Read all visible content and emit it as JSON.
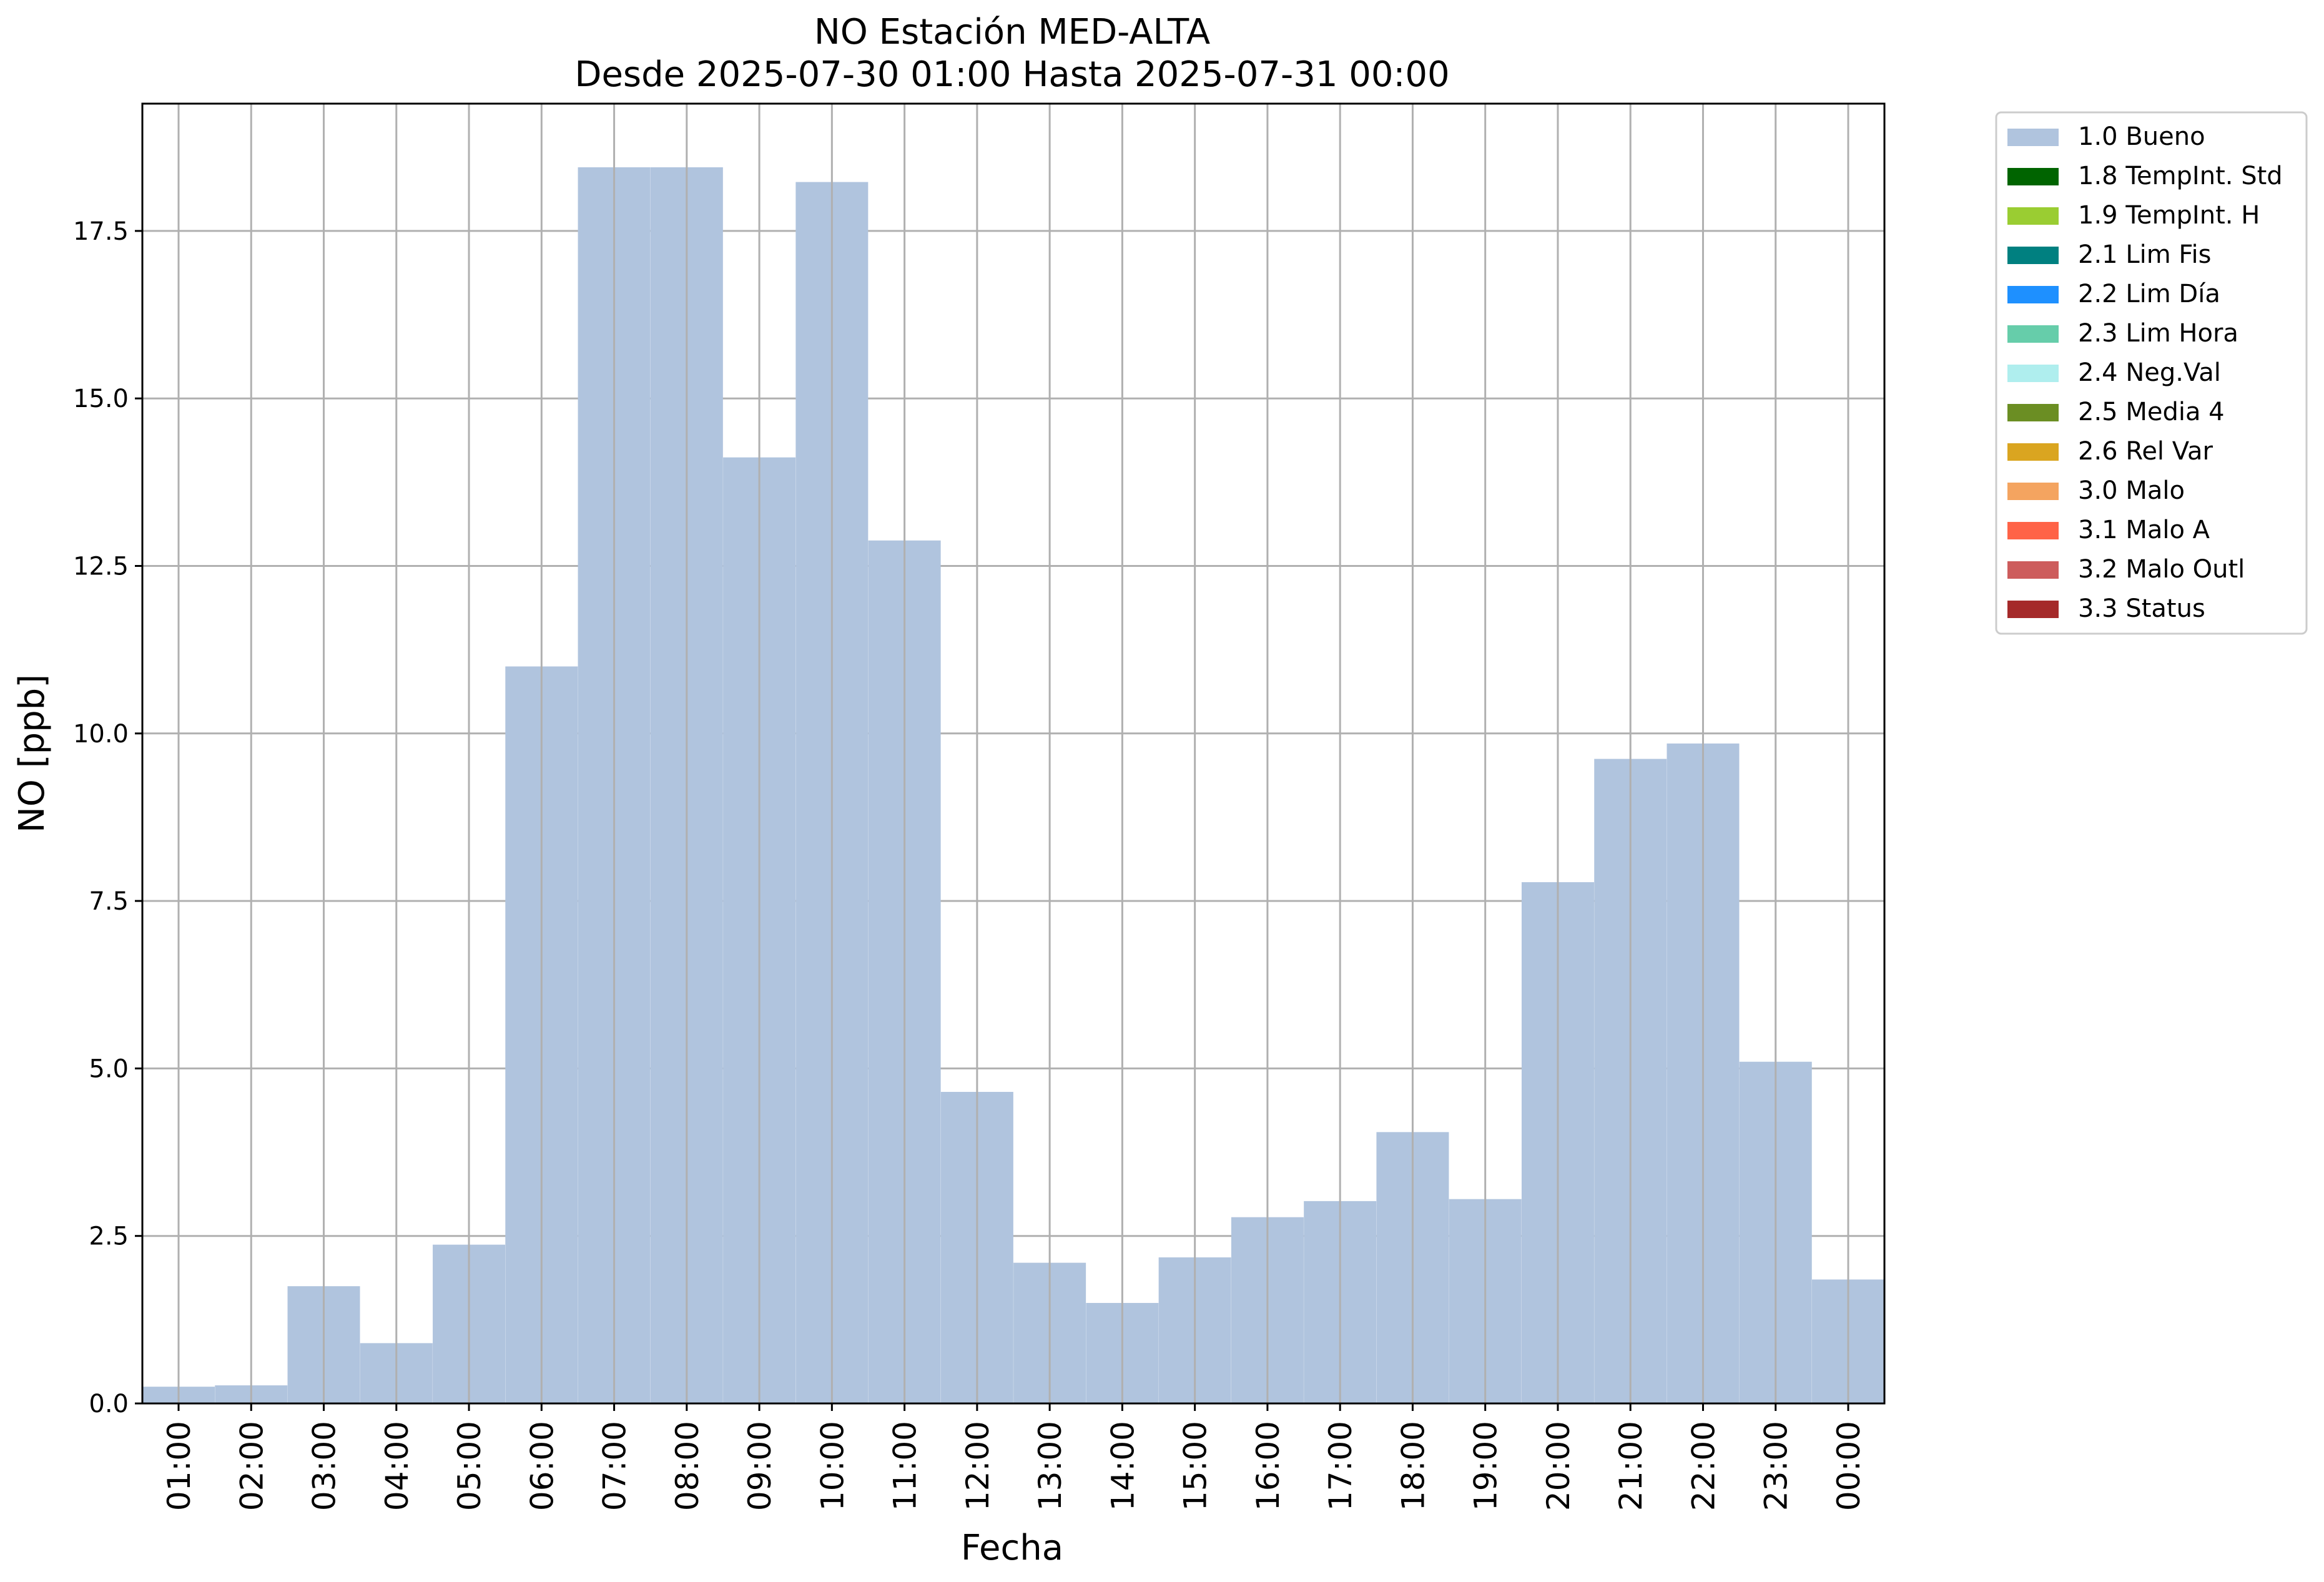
{
  "chart_data": {
    "type": "bar",
    "title": "NO Estación MED-ALTA",
    "subtitle": "Desde 2025-07-30 01:00 Hasta 2025-07-31 00:00",
    "xlabel": "Fecha",
    "ylabel": "NO [ppb]",
    "ylim": [
      0,
      19.4
    ],
    "yticks": [
      "0.0",
      "2.5",
      "5.0",
      "7.5",
      "10.0",
      "12.5",
      "15.0",
      "17.5"
    ],
    "grid": true,
    "legend_position": "outside-top-right",
    "categories": [
      "01:00",
      "02:00",
      "03:00",
      "04:00",
      "05:00",
      "06:00",
      "07:00",
      "08:00",
      "09:00",
      "10:00",
      "11:00",
      "12:00",
      "13:00",
      "14:00",
      "15:00",
      "16:00",
      "17:00",
      "18:00",
      "19:00",
      "20:00",
      "21:00",
      "22:00",
      "23:00",
      "00:00"
    ],
    "series": [
      {
        "name": "1.0 Bueno",
        "color": "#b0c4de",
        "values": [
          0.25,
          0.27,
          1.75,
          0.9,
          2.37,
          11.0,
          18.45,
          18.45,
          14.12,
          18.23,
          12.88,
          4.65,
          2.1,
          1.5,
          2.18,
          2.78,
          3.02,
          4.05,
          3.05,
          7.78,
          9.62,
          9.85,
          5.1,
          1.85
        ]
      }
    ],
    "legend": [
      {
        "label": "1.0 Bueno",
        "color": "#b0c4de"
      },
      {
        "label": "1.8 TempInt. Std",
        "color": "#006400"
      },
      {
        "label": "1.9 TempInt. H",
        "color": "#9acd32"
      },
      {
        "label": "2.1 Lim Fis",
        "color": "#008080"
      },
      {
        "label": "2.2 Lim Día",
        "color": "#1e90ff"
      },
      {
        "label": "2.3 Lim Hora",
        "color": "#66cdaa"
      },
      {
        "label": "2.4 Neg.Val",
        "color": "#afeeee"
      },
      {
        "label": "2.5 Media 4",
        "color": "#6b8e23"
      },
      {
        "label": "2.6 Rel Var",
        "color": "#daa520"
      },
      {
        "label": "3.0 Malo",
        "color": "#f4a460"
      },
      {
        "label": "3.1 Malo A",
        "color": "#ff6347"
      },
      {
        "label": "3.2 Malo Outl",
        "color": "#cd5c5c"
      },
      {
        "label": "3.3 Status",
        "color": "#a52a2a"
      }
    ]
  }
}
